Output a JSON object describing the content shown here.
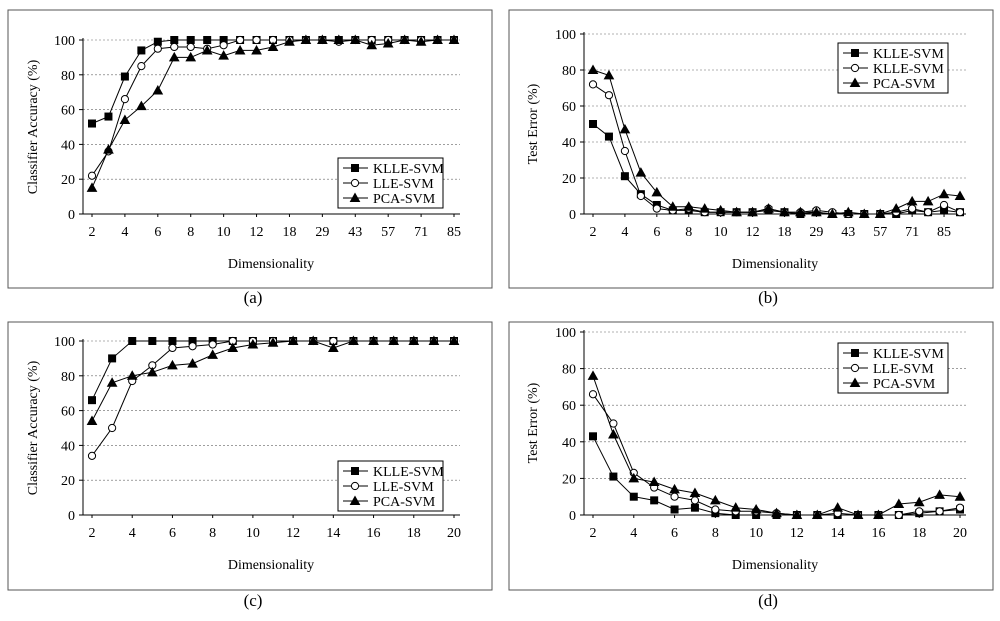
{
  "chart_data": [
    {
      "panel": "a",
      "caption": "(a)",
      "type": "line",
      "xlabel": "Dimensionality",
      "ylabel": "Classifier Accuracy (%)",
      "ylim": [
        0,
        100
      ],
      "yticks": [
        0,
        20,
        40,
        60,
        80,
        100
      ],
      "grid": true,
      "legend_position": "bottom-right",
      "x_tick_labels": [
        "2",
        "4",
        "6",
        "8",
        "10",
        "12",
        "18",
        "29",
        "43",
        "57",
        "71",
        "85"
      ],
      "series": [
        {
          "name": "KLLE-SVM",
          "marker": "square",
          "values": [
            52,
            56,
            79,
            94,
            99,
            100,
            100,
            100,
            100,
            100,
            100,
            100,
            100,
            100,
            100,
            100,
            100,
            100,
            100,
            100,
            100,
            100,
            100
          ]
        },
        {
          "name": "LLE-SVM",
          "marker": "circle",
          "values": [
            22,
            36,
            66,
            85,
            95,
            96,
            96,
            95,
            97,
            100,
            100,
            100,
            100,
            100,
            100,
            99,
            100,
            100,
            100,
            100,
            100,
            100,
            100
          ]
        },
        {
          "name": "PCA-SVM",
          "marker": "triangle",
          "values": [
            15,
            37,
            54,
            62,
            71,
            90,
            90,
            94,
            91,
            94,
            94,
            96,
            99,
            100,
            100,
            100,
            100,
            97,
            98,
            100,
            99,
            100,
            100
          ]
        }
      ]
    },
    {
      "panel": "b",
      "caption": "(b)",
      "type": "line",
      "xlabel": "Dimensionality",
      "ylabel": "Test Error (%)",
      "ylim": [
        0,
        100
      ],
      "yticks": [
        0,
        20,
        40,
        60,
        80,
        100
      ],
      "grid": true,
      "legend_position": "top-right",
      "x_tick_labels": [
        "2",
        "4",
        "6",
        "8",
        "10",
        "12",
        "18",
        "29",
        "43",
        "57",
        "71",
        "85"
      ],
      "series": [
        {
          "name": "KLLE-SVM",
          "marker": "square",
          "values": [
            50,
            43,
            21,
            11,
            5,
            2,
            2,
            1,
            1,
            1,
            1,
            2,
            1,
            0,
            1,
            0,
            0,
            0,
            0,
            0,
            2,
            1,
            2,
            1
          ]
        },
        {
          "name": "KLLE-SVM",
          "marker": "circle",
          "values": [
            72,
            66,
            35,
            10,
            3,
            2,
            3,
            1,
            1,
            1,
            1,
            3,
            1,
            1,
            2,
            1,
            0,
            0,
            0,
            1,
            3,
            1,
            5,
            1
          ]
        },
        {
          "name": "PCA-SVM",
          "marker": "triangle",
          "values": [
            80,
            77,
            47,
            23,
            12,
            4,
            4,
            3,
            2,
            1,
            1,
            3,
            1,
            1,
            1,
            0,
            1,
            0,
            0,
            3,
            7,
            7,
            11,
            10
          ]
        }
      ]
    },
    {
      "panel": "c",
      "caption": "(c)",
      "type": "line",
      "xlabel": "Dimensionality",
      "ylabel": "Classifier Accuracy (%)",
      "ylim": [
        0,
        100
      ],
      "yticks": [
        0,
        20,
        40,
        60,
        80,
        100
      ],
      "grid": true,
      "legend_position": "bottom-right",
      "x_tick_labels": [
        "2",
        "4",
        "6",
        "8",
        "10",
        "12",
        "14",
        "16",
        "18",
        "20"
      ],
      "series": [
        {
          "name": "KLLE-SVM",
          "marker": "square",
          "values": [
            66,
            90,
            100,
            100,
            100,
            100,
            100,
            100,
            100,
            100,
            100,
            100,
            100,
            100,
            100,
            100,
            100,
            100,
            100
          ]
        },
        {
          "name": "LLE-SVM",
          "marker": "circle",
          "values": [
            34,
            50,
            77,
            86,
            96,
            97,
            98,
            100,
            100,
            100,
            100,
            100,
            100,
            100,
            100,
            100,
            100,
            100,
            100
          ]
        },
        {
          "name": "PCA-SVM",
          "marker": "triangle",
          "values": [
            54,
            76,
            80,
            82,
            86,
            87,
            92,
            96,
            98,
            99,
            100,
            100,
            96,
            100,
            100,
            100,
            100,
            100,
            100
          ]
        }
      ]
    },
    {
      "panel": "d",
      "caption": "(d)",
      "type": "line",
      "xlabel": "Dimensionality",
      "ylabel": "Test Error (%)",
      "ylim": [
        0,
        100
      ],
      "yticks": [
        0,
        20,
        40,
        60,
        80,
        100
      ],
      "grid": true,
      "legend_position": "top-right",
      "x_tick_labels": [
        "2",
        "4",
        "6",
        "8",
        "10",
        "12",
        "14",
        "16",
        "18",
        "20"
      ],
      "series": [
        {
          "name": "KLLE-SVM",
          "marker": "square",
          "values": [
            43,
            21,
            10,
            8,
            3,
            4,
            1,
            0,
            0,
            0,
            0,
            0,
            0,
            0,
            0,
            0,
            1,
            2,
            3
          ]
        },
        {
          "name": "LLE-SVM",
          "marker": "circle",
          "values": [
            66,
            50,
            23,
            15,
            10,
            8,
            3,
            2,
            2,
            1,
            0,
            0,
            1,
            0,
            0,
            0,
            2,
            2,
            4
          ]
        },
        {
          "name": "PCA-SVM",
          "marker": "triangle",
          "values": [
            76,
            44,
            20,
            18,
            14,
            12,
            8,
            4,
            3,
            1,
            0,
            0,
            4,
            0,
            0,
            6,
            7,
            11,
            10
          ]
        }
      ]
    }
  ]
}
